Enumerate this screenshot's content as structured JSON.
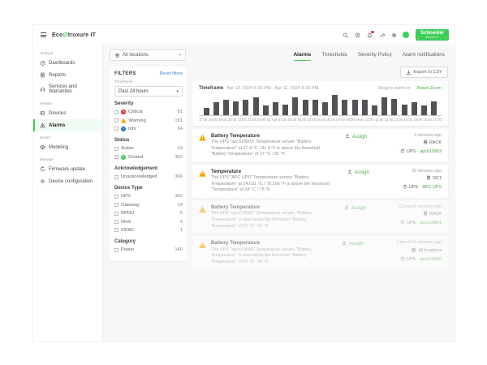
{
  "colors": {
    "green": "#3dcd58",
    "link_green": "#4ca64c",
    "reset_blue": "#4a7fd4",
    "critical": "#d91e2a",
    "warning": "#f0ab00",
    "info": "#1772b8",
    "bar": "#515156"
  },
  "brand": {
    "logo_eco": "Eco",
    "logo_rest": "truxure IT",
    "schneider_line1": "Schneider",
    "schneider_line2": "Electric"
  },
  "topbar": {
    "icons": [
      {
        "name": "search-icon",
        "glyph": "search"
      },
      {
        "name": "history-clock-icon",
        "glyph": "clock"
      },
      {
        "name": "notifications-bell-icon",
        "glyph": "bell",
        "badge": true
      },
      {
        "name": "tools-icon",
        "glyph": "wrench"
      },
      {
        "name": "settings-gear-icon",
        "glyph": "gear"
      },
      {
        "name": "user-avatar",
        "glyph": "avatar"
      }
    ]
  },
  "sidebar": {
    "sections": [
      {
        "label": "Analyze",
        "items": [
          {
            "label": "Dashboards",
            "icon": "dashboards-icon",
            "glyph": "dashboards"
          },
          {
            "label": "Reports",
            "icon": "reports-icon",
            "glyph": "reports"
          },
          {
            "label": "Services and Warranties",
            "icon": "services-icon",
            "glyph": "services"
          }
        ]
      },
      {
        "label": "Monitor",
        "items": [
          {
            "label": "Devices",
            "icon": "devices-icon",
            "glyph": "devices"
          },
          {
            "label": "Alarms",
            "icon": "alarms-icon",
            "glyph": "alarms",
            "active": true
          }
        ]
      },
      {
        "label": "Model",
        "items": [
          {
            "label": "Modeling",
            "icon": "modeling-icon",
            "glyph": "modeling"
          }
        ]
      },
      {
        "label": "Manage",
        "items": [
          {
            "label": "Firmware update",
            "icon": "firmware-update-icon",
            "glyph": "firmware"
          },
          {
            "label": "Device configuration",
            "icon": "device-configuration-icon",
            "glyph": "config"
          }
        ]
      }
    ]
  },
  "location_selector": {
    "value": "All locations"
  },
  "tabs": [
    {
      "label": "Alarms",
      "active": true
    },
    {
      "label": "Thresholds",
      "active": false
    },
    {
      "label": "Severity Policy",
      "active": false
    },
    {
      "label": "Alarm notifications",
      "active": false
    }
  ],
  "filters": {
    "title": "FILTERS",
    "reset_label": "Reset filters",
    "timeframe_label": "Timeframe",
    "timeframe_value": "Past 24 hours",
    "groups": [
      {
        "label": "Severity",
        "items": [
          {
            "label": "Critical",
            "count": "81",
            "icon": "critical"
          },
          {
            "label": "Warning",
            "count": "191",
            "icon": "warning"
          },
          {
            "label": "Info",
            "count": "94",
            "icon": "info"
          }
        ]
      },
      {
        "label": "Status",
        "items": [
          {
            "label": "Active",
            "count": "14"
          },
          {
            "label": "Closed",
            "count": "352",
            "icon": "closed"
          }
        ]
      },
      {
        "label": "Acknowledgement",
        "items": [
          {
            "label": "Unacknowledged",
            "count": "366"
          }
        ]
      },
      {
        "label": "Device Type",
        "items": [
          {
            "label": "UPS",
            "count": "342"
          },
          {
            "label": "Gateway",
            "count": "14"
          },
          {
            "label": "RPDU",
            "count": "5"
          },
          {
            "label": "DHS",
            "count": "4"
          },
          {
            "label": "CRAC",
            "count": "1"
          }
        ]
      },
      {
        "label": "Category",
        "items": [
          {
            "label": "Power",
            "count": "140"
          }
        ]
      }
    ]
  },
  "export_button": {
    "label": "Export to CSV"
  },
  "chart_header": {
    "title": "Timeframe",
    "range": "Apr 10, 2024 5:25 PM - Apr 11, 2024 5:25 PM",
    "drag_hint": "Drag to zoom in",
    "reset_zoom": "Reset Zoom"
  },
  "chart_data": {
    "type": "bar",
    "title": "Alarm count per hour",
    "categories": [
      "17:00",
      "18:00",
      "19:00",
      "20:00",
      "21:00",
      "22:00",
      "23:00",
      "00:00",
      "01:00",
      "02:00",
      "03:00",
      "04:00",
      "05:00",
      "06:00",
      "07:00",
      "08:00",
      "09:00",
      "10:00",
      "11:00",
      "12:00",
      "13:00",
      "14:00",
      "15:00",
      "16:00"
    ],
    "values": [
      6,
      11,
      13,
      12,
      13,
      15,
      8,
      11,
      9,
      15,
      13,
      13,
      11,
      17,
      13,
      13,
      13,
      8,
      15,
      14,
      9,
      11,
      8,
      12
    ],
    "x_tick_labels": [
      "17:00",
      "18:00",
      "19:00",
      "20:00",
      "21:00",
      "22:00",
      "23:00",
      "11. Apr",
      "01:00",
      "02:00",
      "03:00",
      "04:00",
      "05:00",
      "06:00",
      "07:00",
      "08:00",
      "09:00",
      "10:00",
      "11:00",
      "12:00",
      "13:00",
      "14:00",
      "15:00",
      "16:00",
      "17:00"
    ],
    "xlabel": "",
    "ylabel": "",
    "ylim": [
      0,
      18
    ],
    "grid": false,
    "legend": false,
    "bar_color": "#515156"
  },
  "alarms": [
    {
      "severity": "warning",
      "closed": false,
      "title": "Battery Temperature",
      "description": "The UPS \"apc619903\" Temperature sensor \"Battery Temperature\" at 27.4 °C / 81.3 °F is above the threshold \"Battery Temperature\" of 27 °C / 81 °F.",
      "assign_label": "Assign",
      "time": "3 minutes ago",
      "location": "RACK",
      "location_icon": "rack-icon",
      "location_glyph": "rack",
      "device_type": "UPS ·",
      "device_name": "apc619903"
    },
    {
      "severity": "warning",
      "closed": false,
      "title": "Temperature",
      "description": "The UPS \"APC UPS\" Temperature sensor \"Battery Temperature\" at 24.031 °C / 75.256 °F is above the threshold \"Temperature\" of 24 °C / 75 °F.",
      "assign_label": "Assign",
      "time": "26 minutes ago",
      "location": "DC1",
      "location_icon": "building-icon",
      "location_glyph": "building",
      "device_type": "UPS ·",
      "device_name": "APC UPS"
    },
    {
      "severity": "warning",
      "closed": true,
      "title": "Battery Temperature",
      "description": "The UPS \"apc619901\" Temperature sensor \"Battery Temperature\" is now below the threshold \"Battery Temperature\" of 27 °C / 81 °F.",
      "assign_label": "Assign",
      "time": "Closed 8 minutes ago",
      "location": "RACK",
      "location_icon": "rack-icon",
      "location_glyph": "rack",
      "device_type": "UPS ·",
      "device_name": "apc619901"
    },
    {
      "severity": "warning",
      "closed": true,
      "title": "Battery Temperature",
      "description": "The UPS \"apc619905\" Temperature sensor \"Battery Temperature\" is now below the threshold \"Battery Temperature\" of 27 °C / 81 °F.",
      "assign_label": "Assign",
      "time": "Closed 10 minutes ago",
      "location": "All locations",
      "location_icon": "pin-icon",
      "location_glyph": "pin",
      "device_type": "UPS ·",
      "device_name": "apc619905"
    }
  ]
}
